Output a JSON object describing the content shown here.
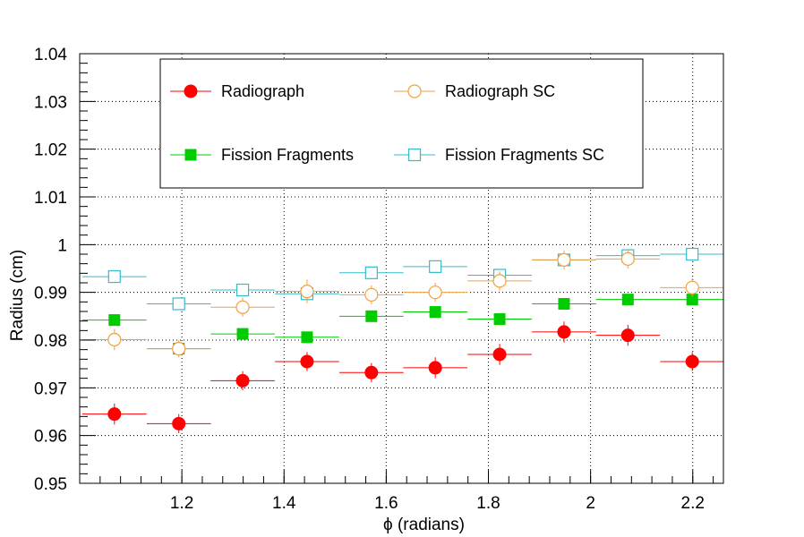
{
  "chart_data": {
    "type": "scatter",
    "title": "",
    "xlabel": "ϕ (radians)",
    "ylabel": "Radius (cm)",
    "xlim": [
      1.0,
      2.26
    ],
    "ylim": [
      0.95,
      1.04
    ],
    "grid": true,
    "legend_position": "top",
    "x_ticks": [
      1.2,
      1.4,
      1.6,
      1.8,
      2.0,
      2.2
    ],
    "x_tick_labels": [
      "1.2",
      "1.4",
      "1.6",
      "1.8",
      "2",
      "2.2"
    ],
    "y_ticks": [
      0.95,
      0.96,
      0.97,
      0.98,
      0.99,
      1.0,
      1.01,
      1.02,
      1.03,
      1.04
    ],
    "y_tick_labels": [
      "0.95",
      "0.96",
      "0.97",
      "0.98",
      "0.99",
      "1",
      "1.01",
      "1.02",
      "1.03",
      "1.04"
    ],
    "x": [
      1.068,
      1.194,
      1.319,
      1.445,
      1.571,
      1.696,
      1.822,
      1.948,
      2.073,
      2.199
    ],
    "x_half_width": 0.0628,
    "series": [
      {
        "name": "Radiograph",
        "marker": "filled-circle",
        "color": "#ff0000",
        "values": [
          0.9645,
          0.9625,
          0.9715,
          0.9755,
          0.9732,
          0.9742,
          0.977,
          0.9817,
          0.981,
          0.9755
        ],
        "errors": [
          0.0022,
          0.002,
          0.002,
          0.002,
          0.002,
          0.0022,
          0.0022,
          0.0022,
          0.0022,
          0.002
        ]
      },
      {
        "name": "Radiograph SC",
        "marker": "open-circle",
        "color": "#f0a040",
        "values": [
          0.9801,
          0.9782,
          0.9869,
          0.9902,
          0.9895,
          0.99,
          0.9924,
          0.9968,
          0.997,
          0.991
        ],
        "errors": [
          0.0022,
          0.0018,
          0.002,
          0.0025,
          0.002,
          0.002,
          0.002,
          0.002,
          0.002,
          0.002
        ]
      },
      {
        "name": "Fission Fragments",
        "marker": "filled-square",
        "color": "#00cc00",
        "values": [
          0.9842,
          0.9782,
          0.9813,
          0.9806,
          0.985,
          0.9859,
          0.9844,
          0.9876,
          0.9885,
          0.9885
        ],
        "errors": [
          0.0008,
          0.0008,
          0.0008,
          0.0008,
          0.0008,
          0.0008,
          0.0008,
          0.0008,
          0.0008,
          0.0008
        ]
      },
      {
        "name": "Fission Fragments SC",
        "marker": "open-square",
        "color": "#33bbcc",
        "values": [
          0.9933,
          0.9876,
          0.9905,
          0.9897,
          0.9941,
          0.9954,
          0.9936,
          0.9968,
          0.9977,
          0.998
        ],
        "errors": [
          0.0008,
          0.0008,
          0.0008,
          0.0008,
          0.0008,
          0.0008,
          0.0008,
          0.0008,
          0.0008,
          0.0008
        ]
      }
    ]
  }
}
